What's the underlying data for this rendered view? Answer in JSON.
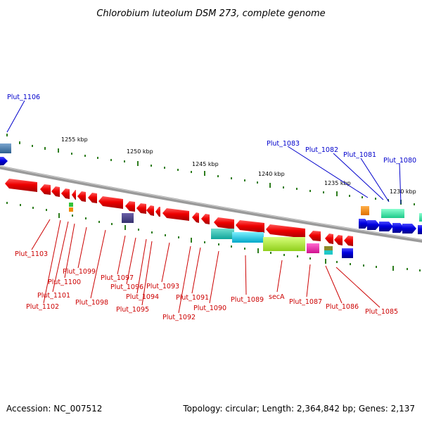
{
  "title": "Chlorobium luteolum DSM 273, complete genome",
  "footer": {
    "accession": "Accession: NC_007512",
    "summary": "Topology: circular; Length: 2,364,842 bp; Genes: 2,137"
  },
  "scale_labels": [
    "1255 kbp",
    "1250 kbp",
    "1245 kbp",
    "1240 kbp",
    "1235 kbp",
    "1230 kbp"
  ],
  "genes_forward_strand": [
    "Plut_1106",
    "Plut_1083",
    "Plut_1082",
    "Plut_1081",
    "Plut_1080"
  ],
  "genes_reverse_strand": [
    "Plut_1103",
    "Plut_1099",
    "Plut_1100",
    "Plut_1101",
    "Plut_1102",
    "Plut_1098",
    "Plut_1097",
    "Plut_1096",
    "Plut_1094",
    "Plut_1095",
    "Plut_1093",
    "Plut_1092",
    "Plut_1091",
    "Plut_1090",
    "Plut_1089",
    "secA",
    "Plut_1087",
    "Plut_1086",
    "Plut_1085"
  ],
  "colors": {
    "forward_label": "#0000cc",
    "reverse_label": "#cc0000",
    "tick": "#2e7d1e",
    "backbone": "#888888"
  }
}
